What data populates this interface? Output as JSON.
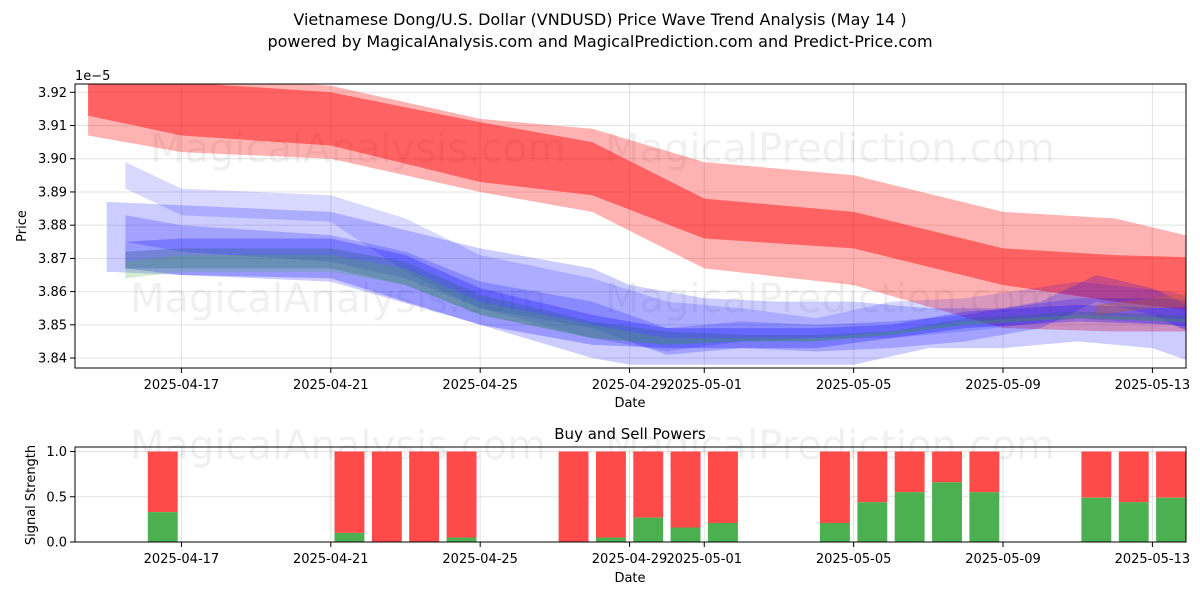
{
  "title_line1": "Vietnamese Dong/U.S. Dollar (VNDUSD) Price Wave Trend Analysis (May 14 )",
  "title_line2": "powered by MagicalAnalysis.com and MagicalPrediction.com and Predict-Price.com",
  "watermarks": {
    "analysis": "MagicalAnalysis.com",
    "prediction": "MagicalPrediction.com"
  },
  "chart_data": [
    {
      "type": "area",
      "name": "price-wave",
      "xlabel": "Date",
      "ylabel": "Price",
      "scale_label": "1e−5",
      "xlim": [
        -0.85,
        28.9
      ],
      "ylim": [
        3.837,
        3.9225
      ],
      "x_ticks": [
        {
          "pos": 2,
          "label": "2025-04-17"
        },
        {
          "pos": 6,
          "label": "2025-04-21"
        },
        {
          "pos": 10,
          "label": "2025-04-25"
        },
        {
          "pos": 14,
          "label": "2025-04-29"
        },
        {
          "pos": 16,
          "label": "2025-05-01"
        },
        {
          "pos": 20,
          "label": "2025-05-05"
        },
        {
          "pos": 24,
          "label": "2025-05-09"
        },
        {
          "pos": 28,
          "label": "2025-05-13"
        }
      ],
      "y_ticks": [
        {
          "v": 3.84,
          "label": "3.84"
        },
        {
          "v": 3.85,
          "label": "3.85"
        },
        {
          "v": 3.86,
          "label": "3.86"
        },
        {
          "v": 3.87,
          "label": "3.87"
        },
        {
          "v": 3.88,
          "label": "3.88"
        },
        {
          "v": 3.89,
          "label": "3.89"
        },
        {
          "v": 3.9,
          "label": "3.90"
        },
        {
          "v": 3.91,
          "label": "3.91"
        },
        {
          "v": 3.92,
          "label": "3.92"
        }
      ],
      "bands": [
        {
          "color": "#ff0000",
          "alpha": 0.3,
          "x": [
            -0.5,
            2,
            6,
            10,
            13,
            16,
            20,
            24,
            27,
            30
          ],
          "upper": [
            3.931,
            3.925,
            3.922,
            3.912,
            3.909,
            3.899,
            3.895,
            3.884,
            3.882,
            3.874
          ],
          "lower": [
            3.907,
            3.902,
            3.9,
            3.89,
            3.884,
            3.867,
            3.862,
            3.849,
            3.848,
            3.848
          ]
        },
        {
          "color": "#ff0000",
          "alpha": 0.45,
          "x": [
            -0.5,
            2,
            6,
            10,
            13,
            16,
            20,
            24,
            27,
            30
          ],
          "upper": [
            3.926,
            3.923,
            3.92,
            3.911,
            3.905,
            3.888,
            3.884,
            3.873,
            3.871,
            3.87
          ],
          "lower": [
            3.913,
            3.907,
            3.904,
            3.893,
            3.889,
            3.876,
            3.873,
            3.862,
            3.857,
            3.853
          ]
        },
        {
          "color": "#0000ff",
          "alpha": 0.15,
          "x": [
            0.5,
            2,
            6,
            8,
            10,
            13,
            15,
            17,
            19,
            21,
            23,
            26,
            28.5,
            30
          ],
          "upper": [
            3.899,
            3.891,
            3.889,
            3.882,
            3.871,
            3.864,
            3.857,
            3.855,
            3.852,
            3.857,
            3.858,
            3.863,
            3.86,
            3.855
          ],
          "lower": [
            3.891,
            3.883,
            3.881,
            3.866,
            3.855,
            3.846,
            3.842,
            3.845,
            3.846,
            3.846,
            3.848,
            3.852,
            3.85,
            3.845
          ]
        },
        {
          "color": "#0000ff",
          "alpha": 0.2,
          "x": [
            0,
            2,
            6,
            10,
            13,
            14,
            16,
            18,
            20,
            22,
            24,
            26,
            28,
            29.8
          ],
          "upper": [
            3.887,
            3.886,
            3.884,
            3.873,
            3.867,
            3.862,
            3.858,
            3.857,
            3.857,
            3.855,
            3.855,
            3.858,
            3.858,
            3.857
          ],
          "lower": [
            3.866,
            3.865,
            3.863,
            3.85,
            3.84,
            3.838,
            3.838,
            3.838,
            3.838,
            3.843,
            3.843,
            3.845,
            3.843,
            3.836
          ]
        },
        {
          "color": "#0000ff",
          "alpha": 0.2,
          "x": [
            0.5,
            2,
            6,
            8,
            10,
            13,
            15,
            17,
            19,
            21,
            23,
            25,
            26.5,
            28,
            29.5
          ],
          "upper": [
            3.883,
            3.88,
            3.877,
            3.872,
            3.863,
            3.857,
            3.849,
            3.851,
            3.85,
            3.851,
            3.853,
            3.857,
            3.865,
            3.861,
            3.853
          ]
        },
        {
          "color": "#0000ff",
          "alpha": 0.25,
          "x": [
            0.5,
            2,
            6,
            8,
            10,
            13,
            15,
            17,
            19,
            21,
            23,
            26,
            28.5,
            30
          ],
          "upper": [
            3.875,
            3.876,
            3.876,
            3.871,
            3.861,
            3.853,
            3.849,
            3.849,
            3.849,
            3.85,
            3.854,
            3.856,
            3.855,
            3.854
          ],
          "lower": [
            3.867,
            3.865,
            3.864,
            3.857,
            3.85,
            3.844,
            3.843,
            3.843,
            3.843,
            3.846,
            3.849,
            3.851,
            3.85,
            3.848
          ]
        },
        {
          "color": "#2e5f8a",
          "alpha": 0.35,
          "x": [
            0.5,
            2,
            6,
            8,
            10,
            13,
            15,
            17,
            19,
            21,
            23,
            26,
            28.5,
            30
          ],
          "upper": [
            3.872,
            3.873,
            3.873,
            3.869,
            3.859,
            3.851,
            3.848,
            3.847,
            3.847,
            3.848,
            3.852,
            3.854,
            3.853,
            3.852
          ],
          "lower": [
            3.867,
            3.867,
            3.867,
            3.862,
            3.853,
            3.846,
            3.844,
            3.845,
            3.845,
            3.847,
            3.85,
            3.852,
            3.851,
            3.85
          ]
        },
        {
          "color": "#4caf50",
          "alpha": 0.25,
          "x": [
            0.5,
            2,
            6,
            8,
            10,
            13,
            15,
            17,
            19,
            21,
            23,
            26,
            28.5,
            30
          ],
          "upper": [
            3.869,
            3.871,
            3.871,
            3.867,
            3.857,
            3.85,
            3.846,
            3.846,
            3.846,
            3.848,
            3.851,
            3.853,
            3.852,
            3.851
          ],
          "lower": [
            3.864,
            3.866,
            3.866,
            3.862,
            3.853,
            3.846,
            3.844,
            3.845,
            3.845,
            3.847,
            3.85,
            3.852,
            3.851,
            3.85
          ]
        },
        {
          "color": "#c0622e",
          "alpha": 0.35,
          "x": [
            26.5,
            28,
            29.7
          ],
          "upper": [
            3.856,
            3.858,
            3.861
          ],
          "lower": [
            3.853,
            3.855,
            3.856
          ]
        }
      ]
    },
    {
      "type": "bar",
      "name": "buy-sell-powers",
      "title": "Buy and Sell Powers",
      "xlabel": "Date",
      "ylabel": "Signal Strength",
      "xlim": [
        -0.85,
        28.9
      ],
      "ylim": [
        0,
        1.05
      ],
      "x_ticks": [
        {
          "pos": 2,
          "label": "2025-04-17"
        },
        {
          "pos": 6,
          "label": "2025-04-21"
        },
        {
          "pos": 10,
          "label": "2025-04-25"
        },
        {
          "pos": 14,
          "label": "2025-04-29"
        },
        {
          "pos": 16,
          "label": "2025-05-01"
        },
        {
          "pos": 20,
          "label": "2025-05-05"
        },
        {
          "pos": 24,
          "label": "2025-05-09"
        },
        {
          "pos": 28,
          "label": "2025-05-13"
        }
      ],
      "y_ticks": [
        {
          "v": 0.0,
          "label": "0.0"
        },
        {
          "v": 0.5,
          "label": "0.5"
        },
        {
          "v": 1.0,
          "label": "1.0"
        }
      ],
      "buy_color": "#4caf50",
      "sell_color": "#ff4a4a",
      "bars": [
        {
          "x": 1.5,
          "buy": 0.33
        },
        {
          "x": 6.5,
          "buy": 0.1
        },
        {
          "x": 7.5,
          "buy": 0.0
        },
        {
          "x": 8.5,
          "buy": 0.0
        },
        {
          "x": 9.5,
          "buy": 0.05
        },
        {
          "x": 12.5,
          "buy": 0.0
        },
        {
          "x": 13.5,
          "buy": 0.05
        },
        {
          "x": 14.5,
          "buy": 0.27
        },
        {
          "x": 15.5,
          "buy": 0.16
        },
        {
          "x": 16.5,
          "buy": 0.21
        },
        {
          "x": 19.5,
          "buy": 0.21
        },
        {
          "x": 20.5,
          "buy": 0.44
        },
        {
          "x": 21.5,
          "buy": 0.55
        },
        {
          "x": 22.5,
          "buy": 0.66
        },
        {
          "x": 23.5,
          "buy": 0.55
        },
        {
          "x": 26.5,
          "buy": 0.49
        },
        {
          "x": 27.5,
          "buy": 0.44
        },
        {
          "x": 28.5,
          "buy": 0.49
        }
      ]
    }
  ]
}
